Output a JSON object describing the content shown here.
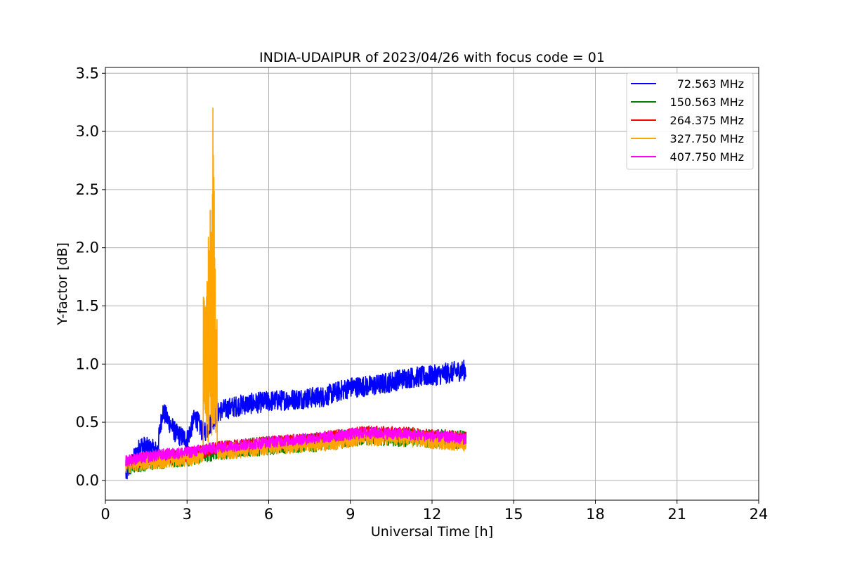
{
  "chart_data": {
    "type": "line",
    "title": "INDIA-UDAIPUR of 2023/04/26 with focus code = 01",
    "xlabel": "Universal Time [h]",
    "ylabel": "Y-factor [dB]",
    "xlim": [
      0,
      24
    ],
    "ylim": [
      -0.17,
      3.55
    ],
    "xticks": [
      0,
      3,
      6,
      9,
      12,
      15,
      18,
      21,
      24
    ],
    "yticks": [
      0.0,
      0.5,
      1.0,
      1.5,
      2.0,
      2.5,
      3.0,
      3.5
    ],
    "xtick_labels": [
      "0",
      "3",
      "6",
      "9",
      "12",
      "15",
      "18",
      "21",
      "24"
    ],
    "ytick_labels": [
      "0.0",
      "0.5",
      "1.0",
      "1.5",
      "2.0",
      "2.5",
      "3.0",
      "3.5"
    ],
    "grid": true,
    "legend_position": "top-right",
    "series": [
      {
        "name": "72.563 MHz",
        "color": "#0000ff",
        "data_range_h": [
          0.75,
          13.25
        ],
        "trend": [
          [
            0.75,
            0.05
          ],
          [
            1.3,
            0.3
          ],
          [
            1.9,
            0.25
          ],
          [
            2.1,
            0.6
          ],
          [
            2.6,
            0.4
          ],
          [
            3.0,
            0.35
          ],
          [
            3.3,
            0.55
          ],
          [
            3.6,
            0.4
          ],
          [
            4.2,
            0.6
          ],
          [
            5.0,
            0.65
          ],
          [
            6.0,
            0.68
          ],
          [
            7.0,
            0.7
          ],
          [
            8.0,
            0.72
          ],
          [
            9.0,
            0.8
          ],
          [
            10.0,
            0.82
          ],
          [
            11.0,
            0.88
          ],
          [
            12.0,
            0.9
          ],
          [
            13.25,
            0.95
          ]
        ],
        "spread": 0.18
      },
      {
        "name": "150.563 MHz",
        "color": "#008000",
        "data_range_h": [
          0.75,
          13.25
        ],
        "trend": [
          [
            0.75,
            0.13
          ],
          [
            2.0,
            0.18
          ],
          [
            3.0,
            0.2
          ],
          [
            4.0,
            0.25
          ],
          [
            6.0,
            0.3
          ],
          [
            8.0,
            0.33
          ],
          [
            9.5,
            0.38
          ],
          [
            11.0,
            0.37
          ],
          [
            13.25,
            0.35
          ]
        ],
        "spread": 0.16
      },
      {
        "name": "264.375 MHz",
        "color": "#ff0000",
        "data_range_h": [
          0.75,
          13.25
        ],
        "trend": [
          [
            0.75,
            0.15
          ],
          [
            2.0,
            0.2
          ],
          [
            3.0,
            0.22
          ],
          [
            4.0,
            0.27
          ],
          [
            6.0,
            0.32
          ],
          [
            8.0,
            0.36
          ],
          [
            9.5,
            0.41
          ],
          [
            11.0,
            0.4
          ],
          [
            13.25,
            0.36
          ]
        ],
        "spread": 0.12
      },
      {
        "name": "327.750 MHz",
        "color": "#ffa500",
        "data_range_h": [
          0.75,
          13.25
        ],
        "trend": [
          [
            0.75,
            0.13
          ],
          [
            2.0,
            0.17
          ],
          [
            3.0,
            0.19
          ],
          [
            4.5,
            0.25
          ],
          [
            6.0,
            0.29
          ],
          [
            8.0,
            0.32
          ],
          [
            9.5,
            0.37
          ],
          [
            11.0,
            0.36
          ],
          [
            13.25,
            0.32
          ]
        ],
        "spread": 0.14,
        "burst": {
          "start_h": 3.6,
          "end_h": 4.1,
          "peaks": [
            [
              3.62,
              1.78
            ],
            [
              3.7,
              1.5
            ],
            [
              3.78,
              2.1
            ],
            [
              3.86,
              2.6
            ],
            [
              3.9,
              2.25
            ],
            [
              3.95,
              3.38
            ],
            [
              4.0,
              2.58
            ],
            [
              4.05,
              1.55
            ]
          ]
        }
      },
      {
        "name": "407.750 MHz",
        "color": "#ff00ff",
        "data_range_h": [
          0.75,
          13.25
        ],
        "trend": [
          [
            0.75,
            0.17
          ],
          [
            2.0,
            0.22
          ],
          [
            3.0,
            0.24
          ],
          [
            4.0,
            0.28
          ],
          [
            6.0,
            0.33
          ],
          [
            8.0,
            0.37
          ],
          [
            9.5,
            0.41
          ],
          [
            11.0,
            0.4
          ],
          [
            13.25,
            0.36
          ]
        ],
        "spread": 0.1
      }
    ]
  }
}
